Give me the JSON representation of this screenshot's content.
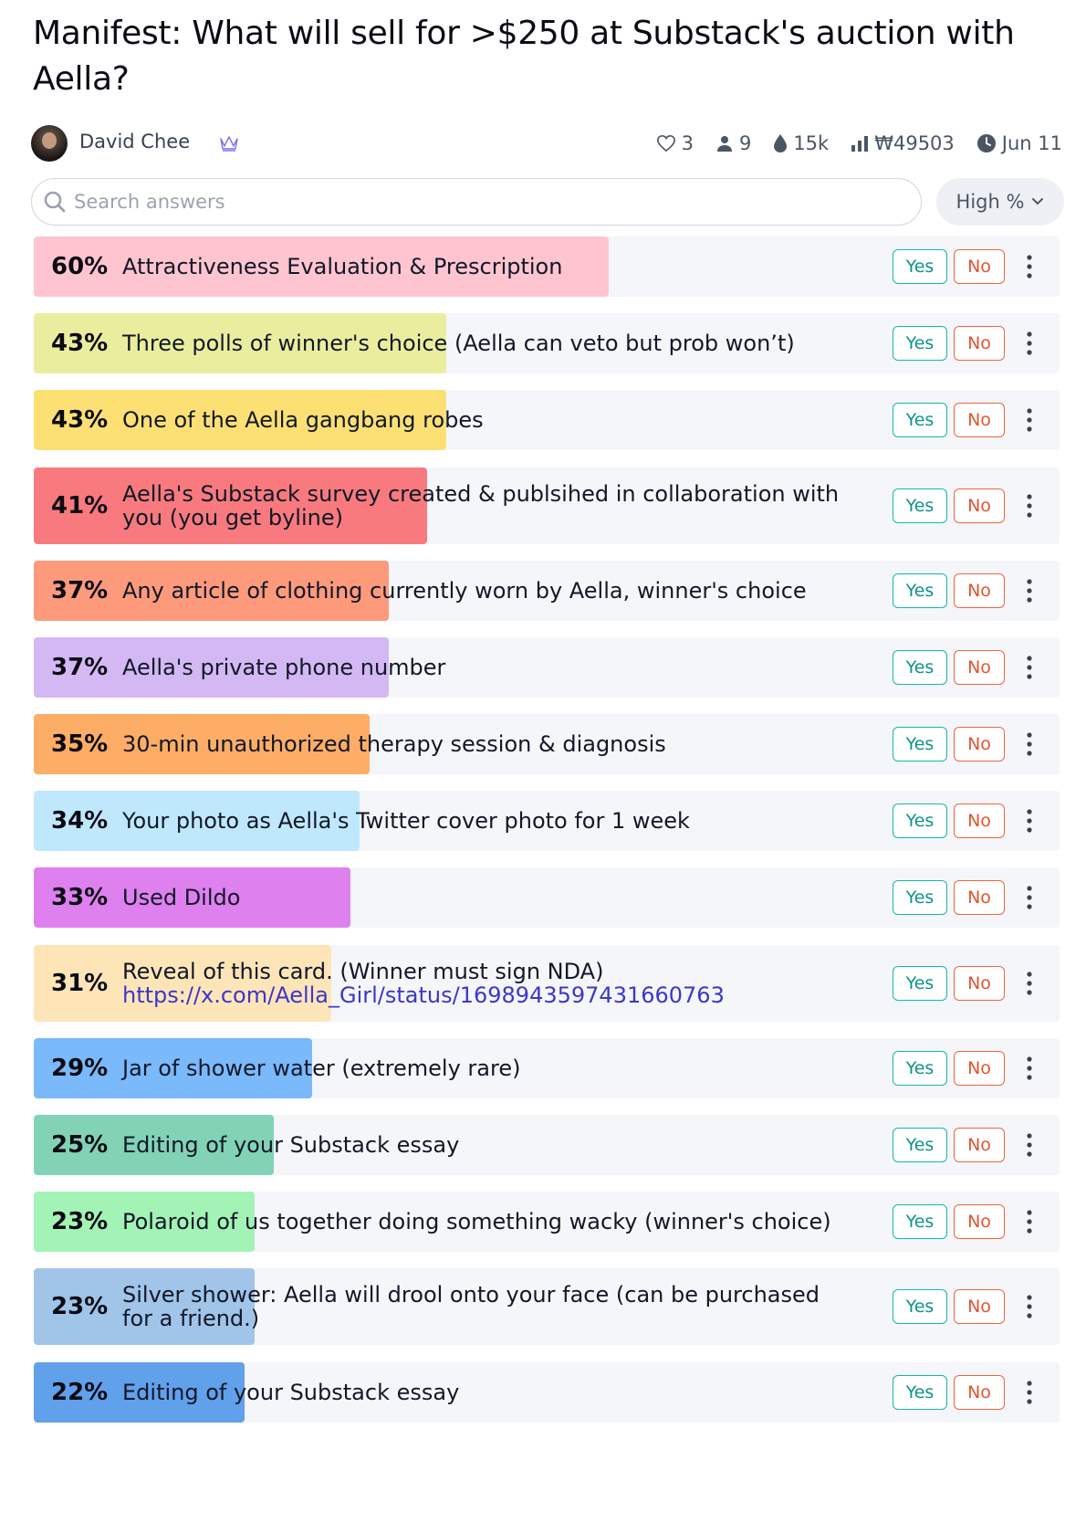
{
  "title": "Manifest: What will sell for >$250 at Substack's auction with Aella?",
  "author": {
    "name": "David Chee"
  },
  "stats": {
    "likes": "3",
    "traders": "9",
    "volume": "15k",
    "pool": "₩49503",
    "close_date": "Jun 11"
  },
  "search": {
    "placeholder": "Search answers"
  },
  "sort": {
    "label": "High %"
  },
  "buttons": {
    "yes": "Yes",
    "no": "No"
  },
  "colors": {
    "yes": "#14b8a6",
    "no": "#f0643c",
    "link": "#3b37c8"
  },
  "answers": [
    {
      "pct": "60%",
      "prob": 0.6,
      "text": "Attractiveness Evaluation & Prescription",
      "color": "#fec5d0"
    },
    {
      "pct": "43%",
      "prob": 0.43,
      "text": "Three polls of winner's choice (Aella can veto but prob won’t)",
      "color": "#ebed9e"
    },
    {
      "pct": "43%",
      "prob": 0.43,
      "text": "One of the Aella gangbang robes",
      "color": "#fde073"
    },
    {
      "pct": "41%",
      "prob": 0.41,
      "text": "Aella's Substack survey created & publsihed in collaboration with you (you get byline)",
      "color": "#f87a7e"
    },
    {
      "pct": "37%",
      "prob": 0.37,
      "text": "Any article of clothing currently worn by Aella, winner's choice",
      "color": "#fd9a7c"
    },
    {
      "pct": "37%",
      "prob": 0.37,
      "text": "Aella's private phone number",
      "color": "#d4b8f3"
    },
    {
      "pct": "35%",
      "prob": 0.35,
      "text": "30-min unauthorized therapy session & diagnosis",
      "color": "#fdad66"
    },
    {
      "pct": "34%",
      "prob": 0.34,
      "text": "Your photo as Aella's Twitter cover photo for 1 week",
      "color": "#bfe8fc"
    },
    {
      "pct": "33%",
      "prob": 0.33,
      "text": "Used Dildo",
      "color": "#df80ef"
    },
    {
      "pct": "31%",
      "prob": 0.31,
      "text": "Reveal of this card. (Winner must sign NDA)",
      "link": "https://x.com/Aella_Girl/status/1698943597431660763",
      "color": "#fee5b8"
    },
    {
      "pct": "29%",
      "prob": 0.29,
      "text": "Jar of shower water (extremely rare)",
      "color": "#7ab9fa"
    },
    {
      "pct": "25%",
      "prob": 0.25,
      "text": "Editing of your Substack essay",
      "color": "#82d3b5"
    },
    {
      "pct": "23%",
      "prob": 0.23,
      "text": "Polaroid of us together doing something wacky (winner's choice)",
      "color": "#a3f2b6"
    },
    {
      "pct": "23%",
      "prob": 0.23,
      "text": "Silver shower: Aella will drool onto your face (can be purchased for a friend.)",
      "color": "#a1c4e9"
    },
    {
      "pct": "22%",
      "prob": 0.22,
      "text": "Editing of your Substack essay",
      "color": "#61a0ea"
    }
  ]
}
